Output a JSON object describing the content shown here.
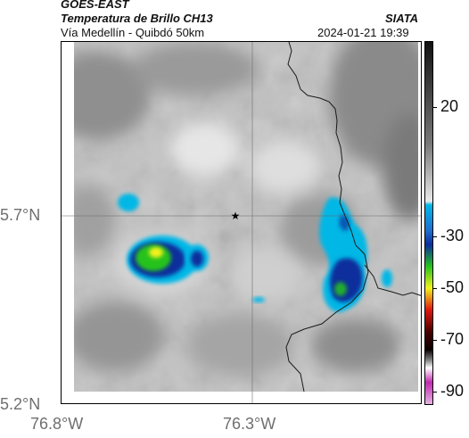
{
  "header": {
    "title": "GOES-EAST",
    "product": "Temperatura de Brillo CH13",
    "region": "Vía Medellín - Quibdó 50km",
    "brand": "SIATA",
    "datetime": "2024-01-21 19:39"
  },
  "map": {
    "lat_labels": [
      "5.7°N",
      "5.2°N"
    ],
    "lon_labels": [
      "76.8°W",
      "76.3°W"
    ],
    "marker_icon": "star-icon",
    "grid_lines": true
  },
  "colorbar": {
    "tick_labels": [
      "20",
      "-30",
      "-50",
      "-70",
      "-90"
    ],
    "tick_values": [
      20,
      -30,
      -50,
      -70,
      -90
    ],
    "range": [
      -95,
      45
    ],
    "colors": {
      "warm": "#1a1a1a",
      "cloud_gray": "#a8a8a8",
      "cyan": "#00b7e6",
      "blue": "#0a2f9c",
      "green": "#25c21f",
      "yellow": "#f2f21a",
      "red": "#e0180f",
      "black": "#0a0000",
      "magenta": "#c02ab0"
    }
  }
}
